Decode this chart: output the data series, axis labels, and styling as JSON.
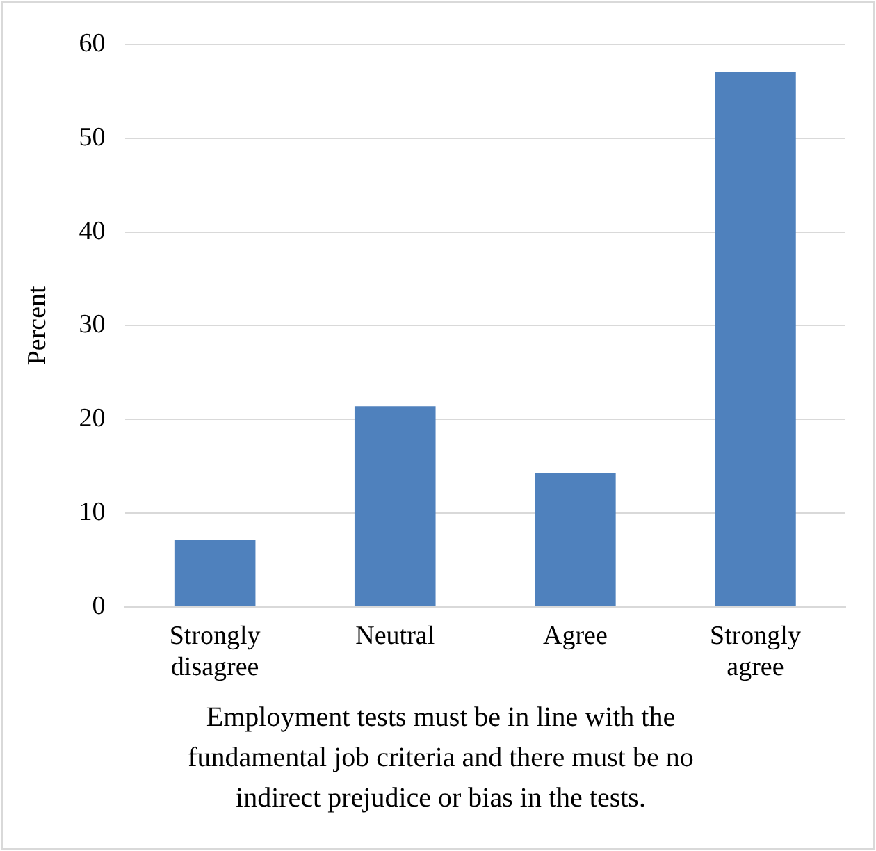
{
  "chart_data": {
    "type": "bar",
    "xlabel": "Employment tests must be in line with the fundamental job criteria and there must be no indirect prejudice or bias in the tests.",
    "ylabel": "Percent",
    "categories": [
      "Strongly disagree",
      "Neutral",
      "Agree",
      "Strongly agree"
    ],
    "values": [
      7.1,
      21.4,
      14.3,
      57.1
    ],
    "color": "#4f81bd",
    "ylim": [
      0,
      60
    ],
    "yticks": [
      0,
      10,
      20,
      30,
      40,
      50,
      60
    ],
    "grid": "y"
  }
}
